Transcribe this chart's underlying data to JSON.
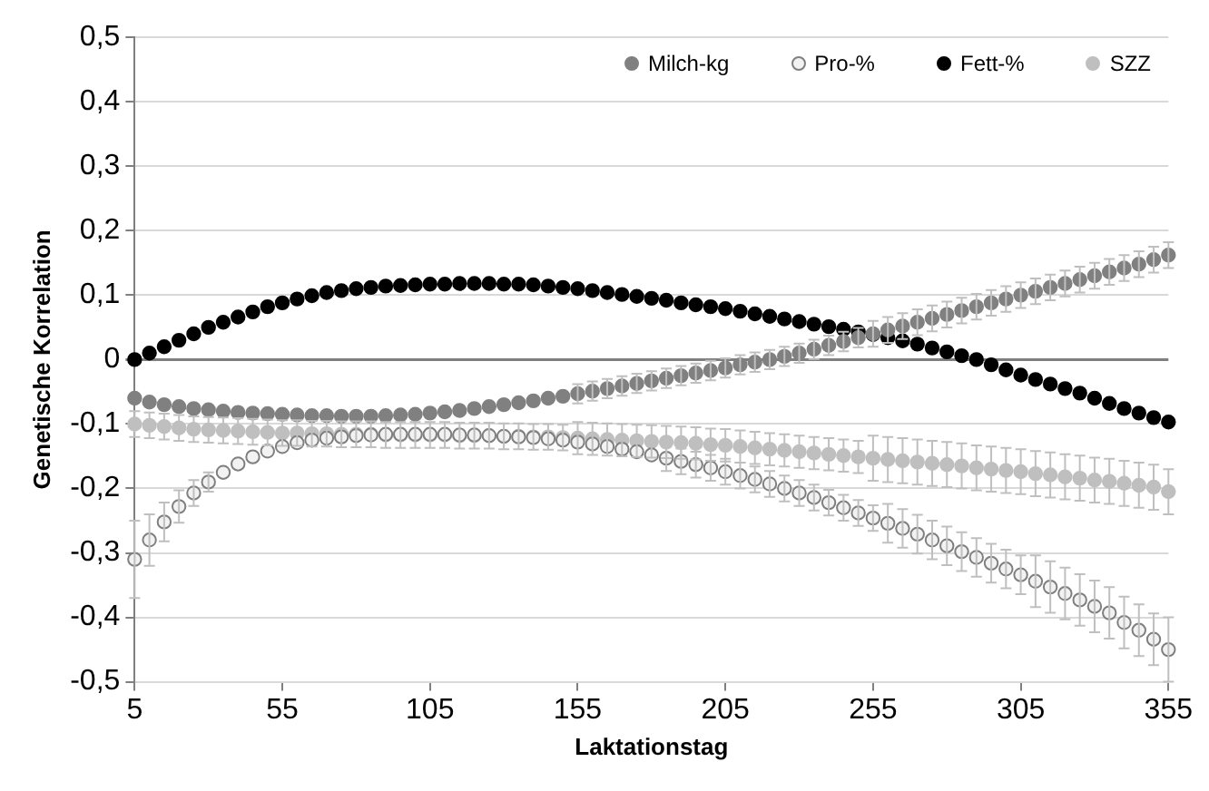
{
  "chart_data": {
    "type": "scatter",
    "xlabel": "Laktationstag",
    "ylabel": "Genetische Korrelation",
    "xlim": [
      5,
      355
    ],
    "xticks": [
      5,
      55,
      105,
      155,
      205,
      255,
      305,
      355
    ],
    "ylim": [
      -0.5,
      0.5
    ],
    "yticks": [
      {
        "value": -0.5,
        "label": "-0,5"
      },
      {
        "value": -0.4,
        "label": "-0,4"
      },
      {
        "value": -0.3,
        "label": "-0,3"
      },
      {
        "value": -0.2,
        "label": "-0,2"
      },
      {
        "value": -0.1,
        "label": "-0,1"
      },
      0,
      {
        "value": 0.1,
        "label": "0,1"
      },
      {
        "value": 0.2,
        "label": "0,2"
      },
      {
        "value": 0.3,
        "label": "0,3"
      },
      {
        "value": 0.4,
        "label": "0,4"
      },
      {
        "value": 0.5,
        "label": "0,5"
      }
    ],
    "grid": "y",
    "legend": "top right",
    "marker": "circle",
    "x": [
      5,
      10,
      15,
      20,
      25,
      30,
      35,
      40,
      45,
      50,
      55,
      60,
      65,
      70,
      75,
      80,
      85,
      90,
      95,
      100,
      105,
      110,
      115,
      120,
      125,
      130,
      135,
      140,
      145,
      150,
      155,
      160,
      165,
      170,
      175,
      180,
      185,
      190,
      195,
      200,
      205,
      210,
      215,
      220,
      225,
      230,
      235,
      240,
      245,
      250,
      255,
      260,
      265,
      270,
      275,
      280,
      285,
      290,
      295,
      300,
      305,
      310,
      315,
      320,
      325,
      330,
      335,
      340,
      345,
      350,
      355
    ],
    "series": [
      {
        "name": "Milch-kg",
        "color": "#808080",
        "values": [
          -0.06,
          -0.066,
          -0.07,
          -0.073,
          -0.076,
          -0.078,
          -0.08,
          -0.082,
          -0.083,
          -0.084,
          -0.085,
          -0.086,
          -0.087,
          -0.087,
          -0.088,
          -0.088,
          -0.088,
          -0.087,
          -0.086,
          -0.085,
          -0.083,
          -0.081,
          -0.079,
          -0.076,
          -0.073,
          -0.07,
          -0.067,
          -0.064,
          -0.06,
          -0.057,
          -0.053,
          -0.049,
          -0.045,
          -0.041,
          -0.037,
          -0.033,
          -0.029,
          -0.025,
          -0.021,
          -0.017,
          -0.013,
          -0.008,
          -0.004,
          0,
          0.005,
          0.01,
          0.016,
          0.022,
          0.028,
          0.034,
          0.04,
          0.046,
          0.052,
          0.058,
          0.064,
          0.07,
          0.076,
          0.082,
          0.088,
          0.094,
          0.1,
          0.106,
          0.112,
          0.118,
          0.124,
          0.13,
          0.136,
          0.142,
          0.148,
          0.155,
          0.162
        ],
        "errors": [
          null,
          null,
          null,
          null,
          null,
          null,
          null,
          null,
          null,
          null,
          null,
          null,
          null,
          null,
          null,
          null,
          null,
          null,
          null,
          null,
          null,
          null,
          null,
          null,
          null,
          null,
          null,
          null,
          null,
          null,
          0.015,
          0.015,
          0.015,
          0.015,
          0.015,
          0.015,
          0.015,
          0.015,
          0.015,
          0.015,
          0.015,
          0.015,
          0.015,
          0.015,
          0.015,
          0.015,
          0.015,
          0.015,
          0.015,
          0.015,
          0.02,
          0.02,
          0.02,
          0.02,
          0.02,
          0.02,
          0.02,
          0.02,
          0.02,
          0.02,
          0.02,
          0.02,
          0.02,
          0.02,
          0.02,
          0.02,
          0.02,
          0.02,
          0.02,
          0.02,
          0.02
        ]
      },
      {
        "name": "Pro-%",
        "color": "#f2f2f2",
        "values": [
          -0.31,
          -0.28,
          -0.252,
          -0.228,
          -0.207,
          -0.19,
          -0.175,
          -0.162,
          -0.151,
          -0.142,
          -0.135,
          -0.129,
          -0.125,
          -0.122,
          -0.12,
          -0.118,
          -0.117,
          -0.116,
          -0.116,
          -0.116,
          -0.116,
          -0.116,
          -0.117,
          -0.117,
          -0.118,
          -0.119,
          -0.12,
          -0.121,
          -0.123,
          -0.125,
          -0.128,
          -0.131,
          -0.135,
          -0.139,
          -0.143,
          -0.148,
          -0.153,
          -0.158,
          -0.163,
          -0.168,
          -0.174,
          -0.18,
          -0.186,
          -0.193,
          -0.2,
          -0.207,
          -0.214,
          -0.222,
          -0.23,
          -0.238,
          -0.246,
          -0.254,
          -0.262,
          -0.271,
          -0.28,
          -0.289,
          -0.298,
          -0.307,
          -0.316,
          -0.325,
          -0.334,
          -0.344,
          -0.353,
          -0.363,
          -0.373,
          -0.383,
          -0.393,
          -0.408,
          -0.42,
          -0.434,
          -0.45
        ],
        "errors": [
          0.06,
          0.04,
          0.03,
          0.025,
          0.02,
          0.015,
          null,
          null,
          null,
          null,
          null,
          null,
          null,
          null,
          null,
          null,
          null,
          null,
          null,
          null,
          null,
          null,
          null,
          null,
          null,
          null,
          null,
          null,
          null,
          null,
          null,
          null,
          null,
          null,
          null,
          null,
          0.02,
          0.02,
          0.02,
          0.02,
          0.02,
          0.02,
          0.02,
          0.02,
          0.02,
          0.02,
          0.02,
          0.02,
          0.02,
          0.02,
          0.02,
          0.03,
          0.03,
          0.03,
          0.03,
          0.03,
          0.03,
          0.03,
          0.03,
          0.03,
          0.03,
          0.04,
          0.04,
          0.04,
          0.04,
          0.04,
          0.04,
          0.04,
          0.04,
          0.04,
          0.05
        ]
      },
      {
        "name": "Fett-%",
        "color": "#000000",
        "values": [
          0,
          0.01,
          0.02,
          0.03,
          0.04,
          0.05,
          0.058,
          0.066,
          0.074,
          0.082,
          0.088,
          0.094,
          0.099,
          0.104,
          0.107,
          0.11,
          0.112,
          0.114,
          0.115,
          0.116,
          0.117,
          0.117,
          0.118,
          0.118,
          0.118,
          0.117,
          0.117,
          0.116,
          0.114,
          0.112,
          0.11,
          0.107,
          0.104,
          0.101,
          0.098,
          0.095,
          0.092,
          0.088,
          0.085,
          0.082,
          0.079,
          0.075,
          0.071,
          0.067,
          0.063,
          0.059,
          0.055,
          0.051,
          0.047,
          0.043,
          0.039,
          0.034,
          0.029,
          0.024,
          0.018,
          0.012,
          0.006,
          0,
          -0.008,
          -0.016,
          -0.024,
          -0.031,
          -0.038,
          -0.045,
          -0.052,
          -0.06,
          -0.068,
          -0.076,
          -0.083,
          -0.09,
          -0.097
        ]
      },
      {
        "name": "SZZ",
        "color": "#bfbfbf",
        "values": [
          -0.1,
          -0.102,
          -0.104,
          -0.106,
          -0.108,
          -0.109,
          -0.11,
          -0.111,
          -0.112,
          -0.113,
          -0.114,
          -0.114,
          -0.115,
          -0.115,
          -0.116,
          -0.116,
          -0.116,
          -0.117,
          -0.117,
          -0.117,
          -0.117,
          -0.117,
          -0.118,
          -0.118,
          -0.118,
          -0.119,
          -0.119,
          -0.12,
          -0.12,
          -0.121,
          -0.122,
          -0.123,
          -0.124,
          -0.125,
          -0.126,
          -0.127,
          -0.128,
          -0.129,
          -0.13,
          -0.132,
          -0.133,
          -0.135,
          -0.137,
          -0.139,
          -0.141,
          -0.143,
          -0.145,
          -0.147,
          -0.149,
          -0.151,
          -0.153,
          -0.155,
          -0.157,
          -0.159,
          -0.161,
          -0.163,
          -0.165,
          -0.168,
          -0.17,
          -0.172,
          -0.174,
          -0.177,
          -0.179,
          -0.182,
          -0.184,
          -0.187,
          -0.189,
          -0.192,
          -0.195,
          -0.198,
          -0.205
        ],
        "errors": [
          0.02,
          0.02,
          0.02,
          0.02,
          0.02,
          0.02,
          0.02,
          0.02,
          0.02,
          0.02,
          0.02,
          0.02,
          0.02,
          0.02,
          0.02,
          0.02,
          0.02,
          0.02,
          0.02,
          0.02,
          0.02,
          0.02,
          0.02,
          0.02,
          0.02,
          0.02,
          0.02,
          0.02,
          0.02,
          0.02,
          0.025,
          0.025,
          0.025,
          0.025,
          0.025,
          0.025,
          0.025,
          0.025,
          0.025,
          0.025,
          0.025,
          0.025,
          0.025,
          0.025,
          0.025,
          0.025,
          0.025,
          0.025,
          0.025,
          0.025,
          0.035,
          0.035,
          0.035,
          0.035,
          0.035,
          0.035,
          0.035,
          0.035,
          0.035,
          0.035,
          0.035,
          0.035,
          0.035,
          0.035,
          0.035,
          0.035,
          0.035,
          0.035,
          0.035,
          0.035,
          0.035
        ]
      }
    ]
  }
}
